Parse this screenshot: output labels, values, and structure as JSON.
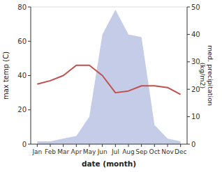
{
  "chart_data": {
    "type": "line",
    "xlabel": "date (month)",
    "ylabel": "max temp (C)",
    "y2label": "med. precipitation\n(kg/m2)",
    "categories": [
      "Jan",
      "Feb",
      "Mar",
      "Apr",
      "May",
      "Jun",
      "Jul",
      "Aug",
      "Sep",
      "Oct",
      "Nov",
      "Dec"
    ],
    "series": [
      {
        "type": "area",
        "axis": "y2",
        "color": "#c5cce8",
        "values": [
          1,
          1,
          2,
          3,
          10,
          40,
          49,
          40,
          39,
          7,
          2,
          1
        ]
      },
      {
        "type": "line",
        "color": "#c0504d",
        "values": [
          35,
          37,
          40,
          46,
          46,
          40,
          30,
          31,
          34,
          34,
          33,
          29
        ]
      }
    ],
    "ylim": [
      0,
      80
    ],
    "yticks": [
      0,
      20,
      40,
      60,
      80
    ],
    "y2lim": [
      0,
      50
    ],
    "y2ticks": [
      0,
      10,
      20,
      30,
      40,
      50
    ],
    "grid": false
  }
}
